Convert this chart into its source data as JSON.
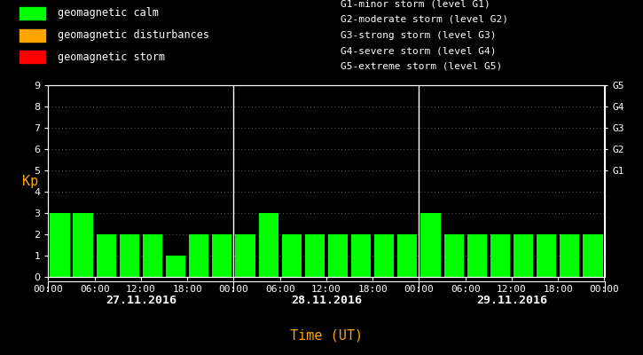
{
  "bg_color": "#000000",
  "bar_color": "#00ff00",
  "text_color": "#ffffff",
  "orange_color": "#ffa500",
  "days": [
    "27.11.2016",
    "28.11.2016",
    "29.11.2016"
  ],
  "kp_values": [
    [
      3,
      3,
      2,
      2,
      2,
      1,
      2,
      2
    ],
    [
      2,
      3,
      2,
      2,
      2,
      2,
      2,
      2
    ],
    [
      3,
      2,
      2,
      2,
      2,
      2,
      2,
      2
    ]
  ],
  "ylim": [
    0,
    9
  ],
  "yticks": [
    0,
    1,
    2,
    3,
    4,
    5,
    6,
    7,
    8,
    9
  ],
  "ylabel": "Kp",
  "xlabel": "Time (UT)",
  "g_labels": [
    "G1",
    "G2",
    "G3",
    "G4",
    "G5"
  ],
  "g_positions": [
    5,
    6,
    7,
    8,
    9
  ],
  "g_legend_lines": [
    "G1-minor storm (level G1)",
    "G2-moderate storm (level G2)",
    "G3-strong storm (level G3)",
    "G4-severe storm (level G4)",
    "G5-extreme storm (level G5)"
  ],
  "legend_labels": [
    "geomagnetic calm",
    "geomagnetic disturbances",
    "geomagnetic storm"
  ],
  "legend_colors": [
    "#00ff00",
    "#ffa500",
    "#ff0000"
  ],
  "time_labels": [
    "00:00",
    "06:00",
    "12:00",
    "18:00",
    "00:00"
  ],
  "dot_color": "#606060",
  "tick_fontsize": 8,
  "bar_width": 0.85
}
